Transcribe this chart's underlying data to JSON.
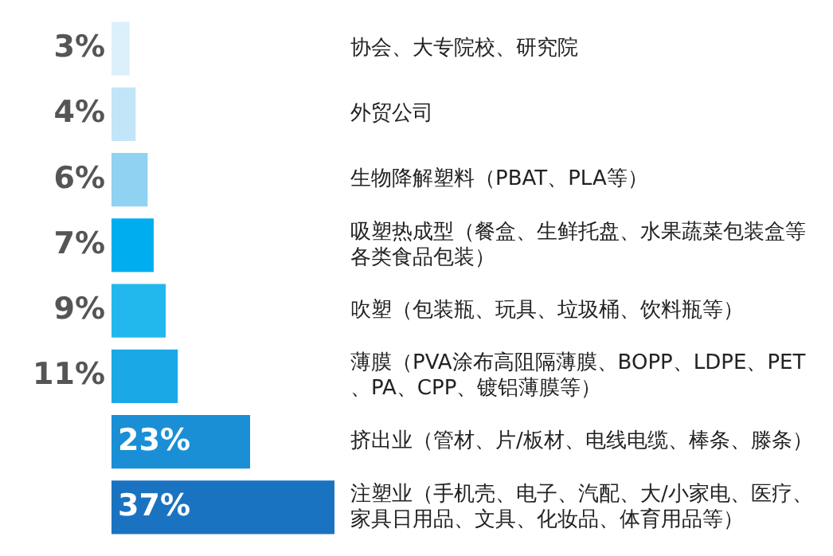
{
  "chart_data": {
    "type": "bar",
    "orientation": "horizontal",
    "value_labels": [
      "3%",
      "4%",
      "6%",
      "7%",
      "9%",
      "11%",
      "23%",
      "37%"
    ],
    "categories": [
      "协会、大专院校、研究院",
      "外贸公司",
      "生物降解塑料（PBAT、PLA等）",
      "吸塑热成型（餐盒、生鲜托盘、水果蔬菜包装盒等各类食品包装）",
      "吹塑（包装瓶、玩具、垃圾桶、饮料瓶等）",
      "薄膜（PVA涂布高阻隔薄膜、BOPP、LDPE、PET、PA、CPP、镀铝薄膜等）",
      "挤出业（管材、片/板材、电线电缆、棒条、滕条）",
      "注塑业（手机壳、电子、汽配、大/小家电、医疗、家具日用品、文具、化妆品、体育用品等）"
    ],
    "values": [
      3,
      4,
      6,
      7,
      9,
      11,
      23,
      37
    ],
    "colors": [
      "#dcf0fb",
      "#c2e5f8",
      "#90d2f2",
      "#00aeef",
      "#22b8ee",
      "#1aa9e6",
      "#1a8fd6",
      "#1a73c1"
    ]
  }
}
